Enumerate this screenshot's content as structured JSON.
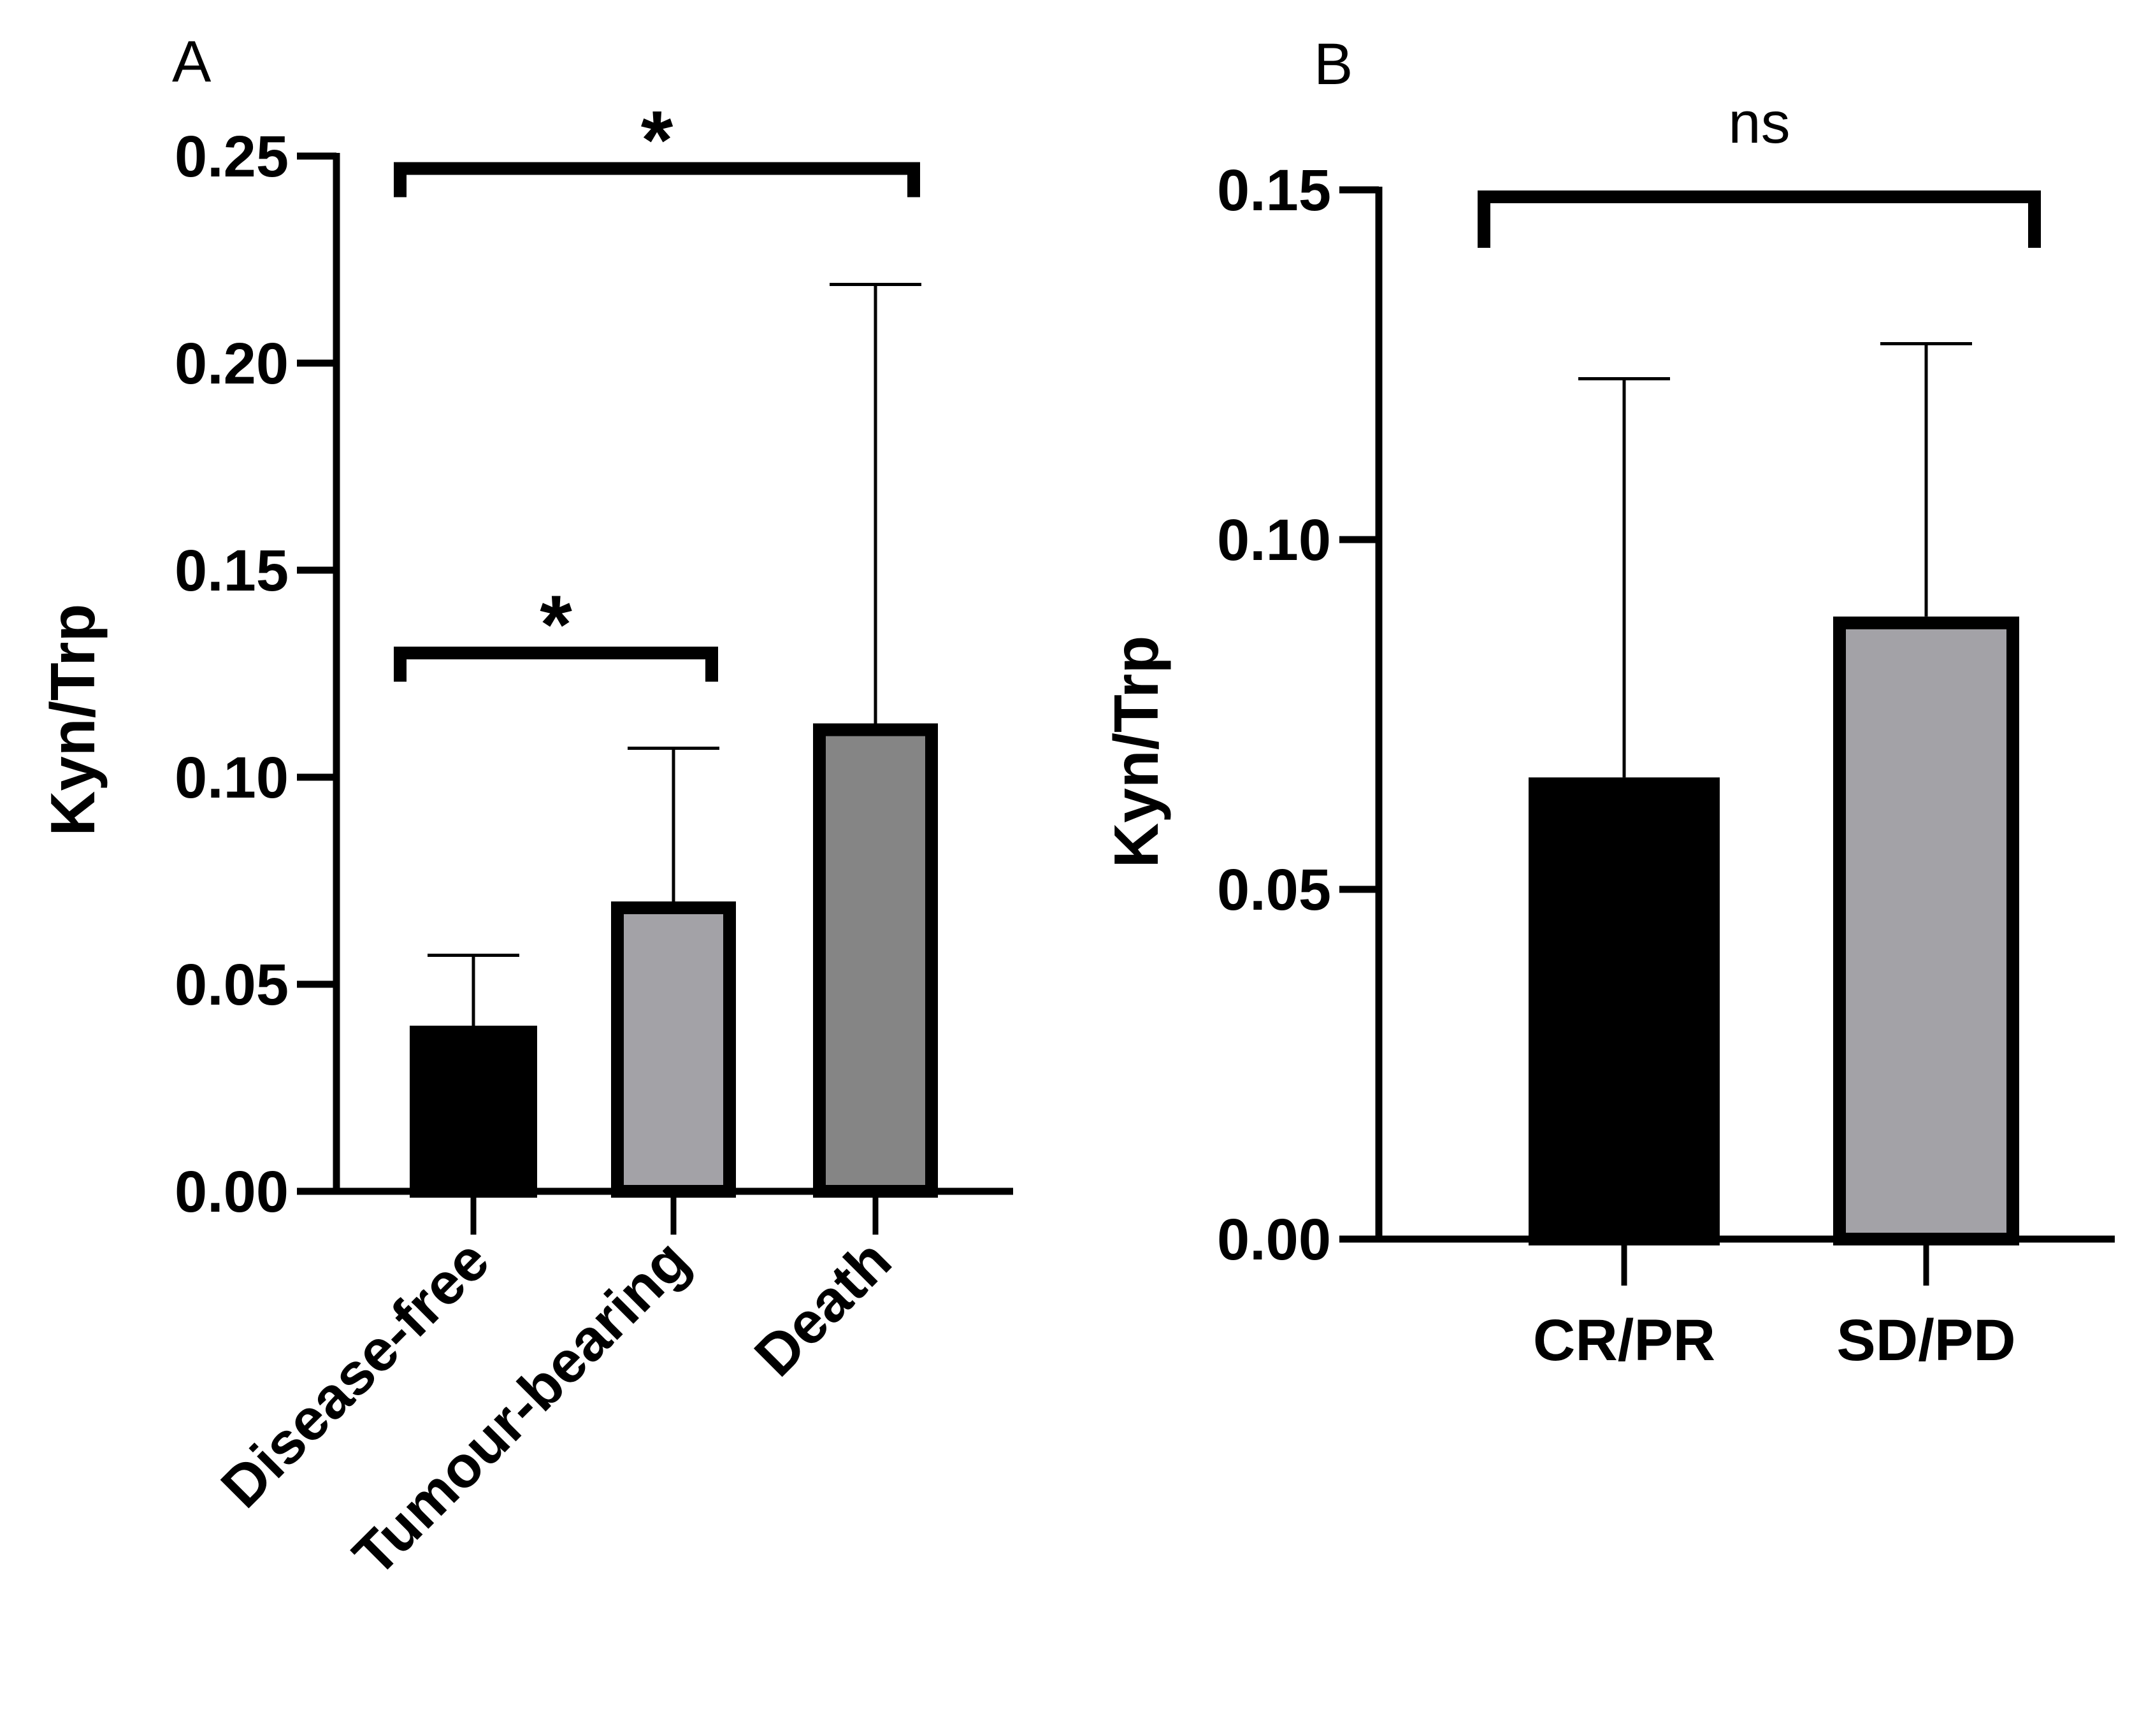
{
  "chart_data": [
    {
      "type": "bar",
      "panel_label": "A",
      "ylabel": "Kyn/Trp",
      "xlabel": "",
      "ylim": [
        0,
        0.25
      ],
      "yticks": [
        "0.00",
        "0.05",
        "0.10",
        "0.15",
        "0.20",
        "0.25"
      ],
      "categories": [
        "Disease-free",
        "Tumour-bearing",
        "Death"
      ],
      "values": [
        0.04,
        0.07,
        0.113
      ],
      "error_upper": [
        0.057,
        0.107,
        0.219
      ],
      "colors": [
        "#000000",
        "#a3a2a7",
        "#858585"
      ],
      "significance": [
        {
          "from": 0,
          "to": 1,
          "label": "*",
          "level": 0.13
        },
        {
          "from": 0,
          "to": 2,
          "label": "*",
          "level": 0.247
        }
      ]
    },
    {
      "type": "bar",
      "panel_label": "B",
      "ylabel": "Kyn/Trp",
      "xlabel": "",
      "ylim": [
        0,
        0.15
      ],
      "yticks": [
        "0.00",
        "0.05",
        "0.10",
        "0.15"
      ],
      "categories": [
        "CR/PR",
        "SD/PD"
      ],
      "values": [
        0.066,
        0.089
      ],
      "error_upper": [
        0.123,
        0.128
      ],
      "colors": [
        "#000000",
        "#a3a2a7"
      ],
      "significance": [
        {
          "from": 0,
          "to": 1,
          "label": "ns",
          "level": 0.149
        }
      ]
    }
  ]
}
